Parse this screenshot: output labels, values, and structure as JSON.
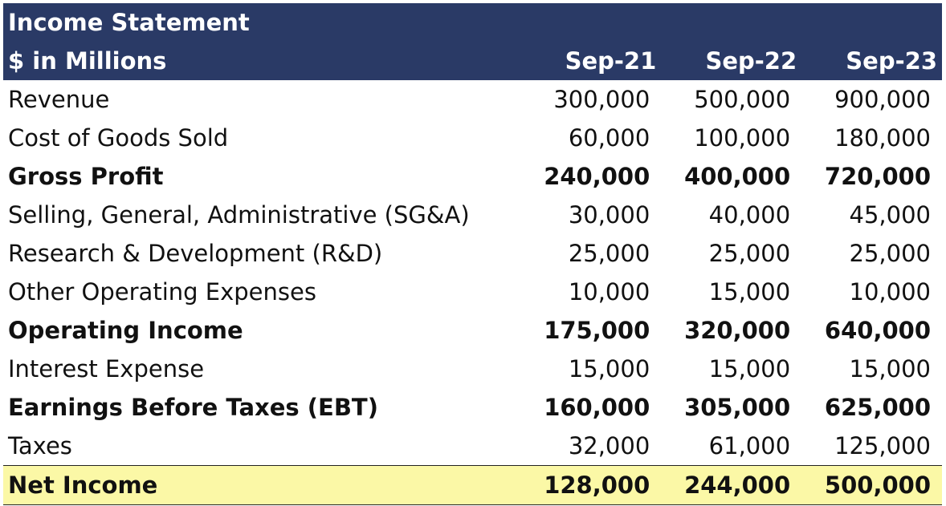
{
  "header": {
    "title": "Income Statement",
    "units": "$ in Millions",
    "periods": [
      "Sep-21",
      "Sep-22",
      "Sep-23"
    ]
  },
  "rows": [
    {
      "label": "Revenue",
      "values": [
        "300,000",
        "500,000",
        "900,000"
      ],
      "bold": false
    },
    {
      "label": "Cost of Goods Sold",
      "values": [
        "60,000",
        "100,000",
        "180,000"
      ],
      "bold": false
    },
    {
      "label": "Gross Profit",
      "values": [
        "240,000",
        "400,000",
        "720,000"
      ],
      "bold": true
    },
    {
      "label": "Selling, General, Administrative (SG&A)",
      "values": [
        "30,000",
        "40,000",
        "45,000"
      ],
      "bold": false
    },
    {
      "label": "Research & Development (R&D)",
      "values": [
        "25,000",
        "25,000",
        "25,000"
      ],
      "bold": false
    },
    {
      "label": "Other Operating Expenses",
      "values": [
        "10,000",
        "15,000",
        "10,000"
      ],
      "bold": false
    },
    {
      "label": "Operating Income",
      "values": [
        "175,000",
        "320,000",
        "640,000"
      ],
      "bold": true
    },
    {
      "label": "Interest Expense",
      "values": [
        "15,000",
        "15,000",
        "15,000"
      ],
      "bold": false
    },
    {
      "label": "Earnings Before Taxes (EBT)",
      "values": [
        "160,000",
        "305,000",
        "625,000"
      ],
      "bold": true
    },
    {
      "label": "Taxes",
      "values": [
        "32,000",
        "61,000",
        "125,000"
      ],
      "bold": false
    }
  ],
  "net_income": {
    "label": "Net Income",
    "values": [
      "128,000",
      "244,000",
      "500,000"
    ]
  },
  "colors": {
    "header_bg": "#2a3a66",
    "header_text": "#ffffff",
    "net_income_bg": "#fbf8a6"
  }
}
